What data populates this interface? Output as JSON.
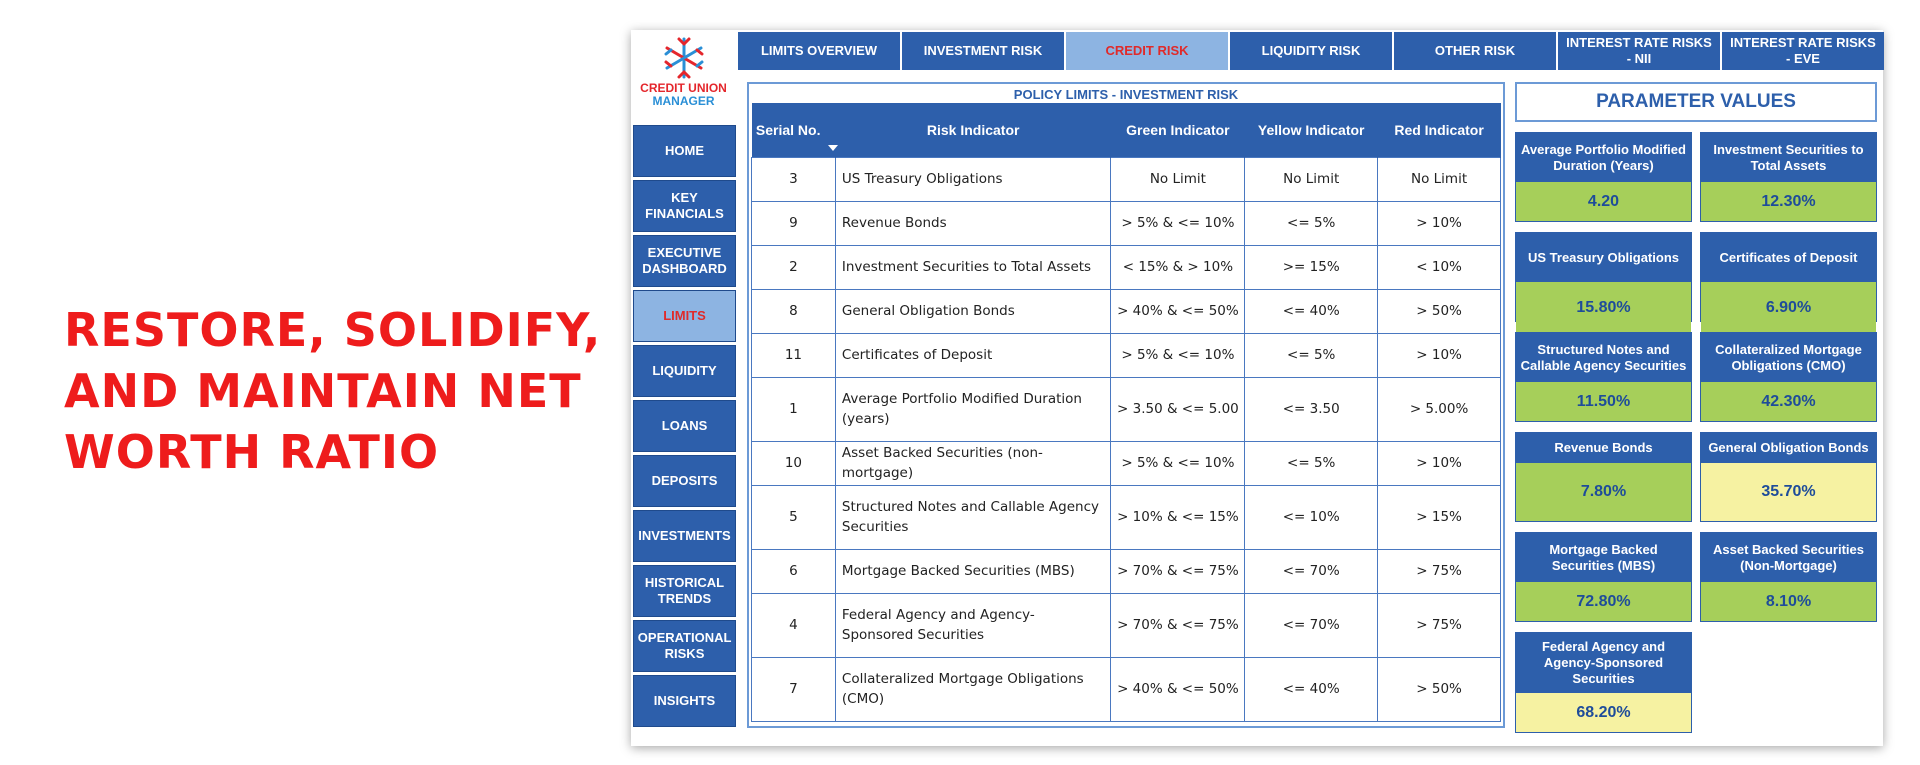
{
  "headline": "RESTORE, SOLIDIFY, AND MAINTAIN NET WORTH RATIO",
  "logo": {
    "line1": "CREDIT UNION",
    "line2": "MANAGER"
  },
  "colors": {
    "accent": "#2d5fab",
    "active": "#8db4e2",
    "active_text": "#e02a2a",
    "green": "#a6cf5a",
    "yellow": "#f6f2a2",
    "headline": "#ee1c1c"
  },
  "sidebar": {
    "items": [
      {
        "label": "HOME"
      },
      {
        "label": "KEY FINANCIALS"
      },
      {
        "label": "EXECUTIVE DASHBOARD"
      },
      {
        "label": "LIMITS",
        "active": true
      },
      {
        "label": "LIQUIDITY"
      },
      {
        "label": "LOANS"
      },
      {
        "label": "DEPOSITS"
      },
      {
        "label": "INVESTMENTS"
      },
      {
        "label": "HISTORICAL TRENDS"
      },
      {
        "label": "OPERATIONAL RISKS"
      },
      {
        "label": "INSIGHTS"
      }
    ]
  },
  "tabs": [
    {
      "label": "LIMITS OVERVIEW"
    },
    {
      "label": "INVESTMENT RISK"
    },
    {
      "label": "CREDIT RISK",
      "active": true
    },
    {
      "label": "LIQUIDITY RISK"
    },
    {
      "label": "OTHER RISK"
    },
    {
      "label": "INTEREST RATE RISKS - NII"
    },
    {
      "label": "INTEREST RATE RISKS - EVE"
    }
  ],
  "policy": {
    "title": "POLICY LIMITS - INVESTMENT RISK",
    "columns": [
      "Serial No.",
      "Risk Indicator",
      "Green Indicator",
      "Yellow Indicator",
      "Red Indicator"
    ],
    "rows": [
      [
        "3",
        "US Treasury Obligations",
        "No Limit",
        "No Limit",
        "No Limit"
      ],
      [
        "9",
        "Revenue Bonds",
        "> 5% & <= 10%",
        "<= 5%",
        "> 10%"
      ],
      [
        "2",
        "Investment Securities to Total Assets",
        "< 15% & > 10%",
        ">= 15%",
        "< 10%"
      ],
      [
        "8",
        "General Obligation Bonds",
        "> 40% & <= 50%",
        "<= 40%",
        "> 50%"
      ],
      [
        "11",
        "Certificates of Deposit",
        "> 5% & <= 10%",
        "<= 5%",
        "> 10%"
      ],
      [
        "1",
        "Average Portfolio Modified Duration (years)",
        "> 3.50 & <= 5.00",
        "<= 3.50",
        "> 5.00%"
      ],
      [
        "10",
        "Asset Backed Securities (non-mortgage)",
        "> 5% & <= 10%",
        "<= 5%",
        "> 10%"
      ],
      [
        "5",
        "Structured Notes and Callable Agency Securities",
        "> 10% & <= 15%",
        "<= 10%",
        "> 15%"
      ],
      [
        "6",
        "Mortgage Backed Securities (MBS)",
        "> 70% & <= 75%",
        "<= 70%",
        "> 75%"
      ],
      [
        "4",
        "Federal Agency and Agency-Sponsored Securities",
        "> 70% & <= 75%",
        "<= 70%",
        "> 75%"
      ],
      [
        "7",
        "Collateralized Mortgage Obligations (CMO)",
        "> 40% & <= 50%",
        "<= 40%",
        "> 50%"
      ]
    ]
  },
  "parameters": {
    "title": "PARAMETER VALUES",
    "cards": [
      {
        "label": "Average Portfolio Modified Duration (Years)",
        "value": "4.20",
        "status": "green"
      },
      {
        "label": "Investment Securities to Total Assets",
        "value": "12.30%",
        "status": "green"
      },
      {
        "label": "US Treasury Obligations",
        "value": "15.80%",
        "status": "green"
      },
      {
        "label": "Certificates of Deposit",
        "value": "6.90%",
        "status": "green"
      },
      {
        "label": "Structured Notes and Callable Agency Securities",
        "value": "11.50%",
        "status": "green"
      },
      {
        "label": "Collateralized Mortgage Obligations (CMO)",
        "value": "42.30%",
        "status": "green"
      },
      {
        "label": "Revenue Bonds",
        "value": "7.80%",
        "status": "green"
      },
      {
        "label": "General Obligation Bonds",
        "value": "35.70%",
        "status": "yellow"
      },
      {
        "label": "Mortgage Backed Securities (MBS)",
        "value": "72.80%",
        "status": "green"
      },
      {
        "label": "Asset Backed Securities (Non-Mortgage)",
        "value": "8.10%",
        "status": "green"
      },
      {
        "label": "Federal Agency and Agency-Sponsored Securities",
        "value": "68.20%",
        "status": "yellow"
      }
    ]
  }
}
